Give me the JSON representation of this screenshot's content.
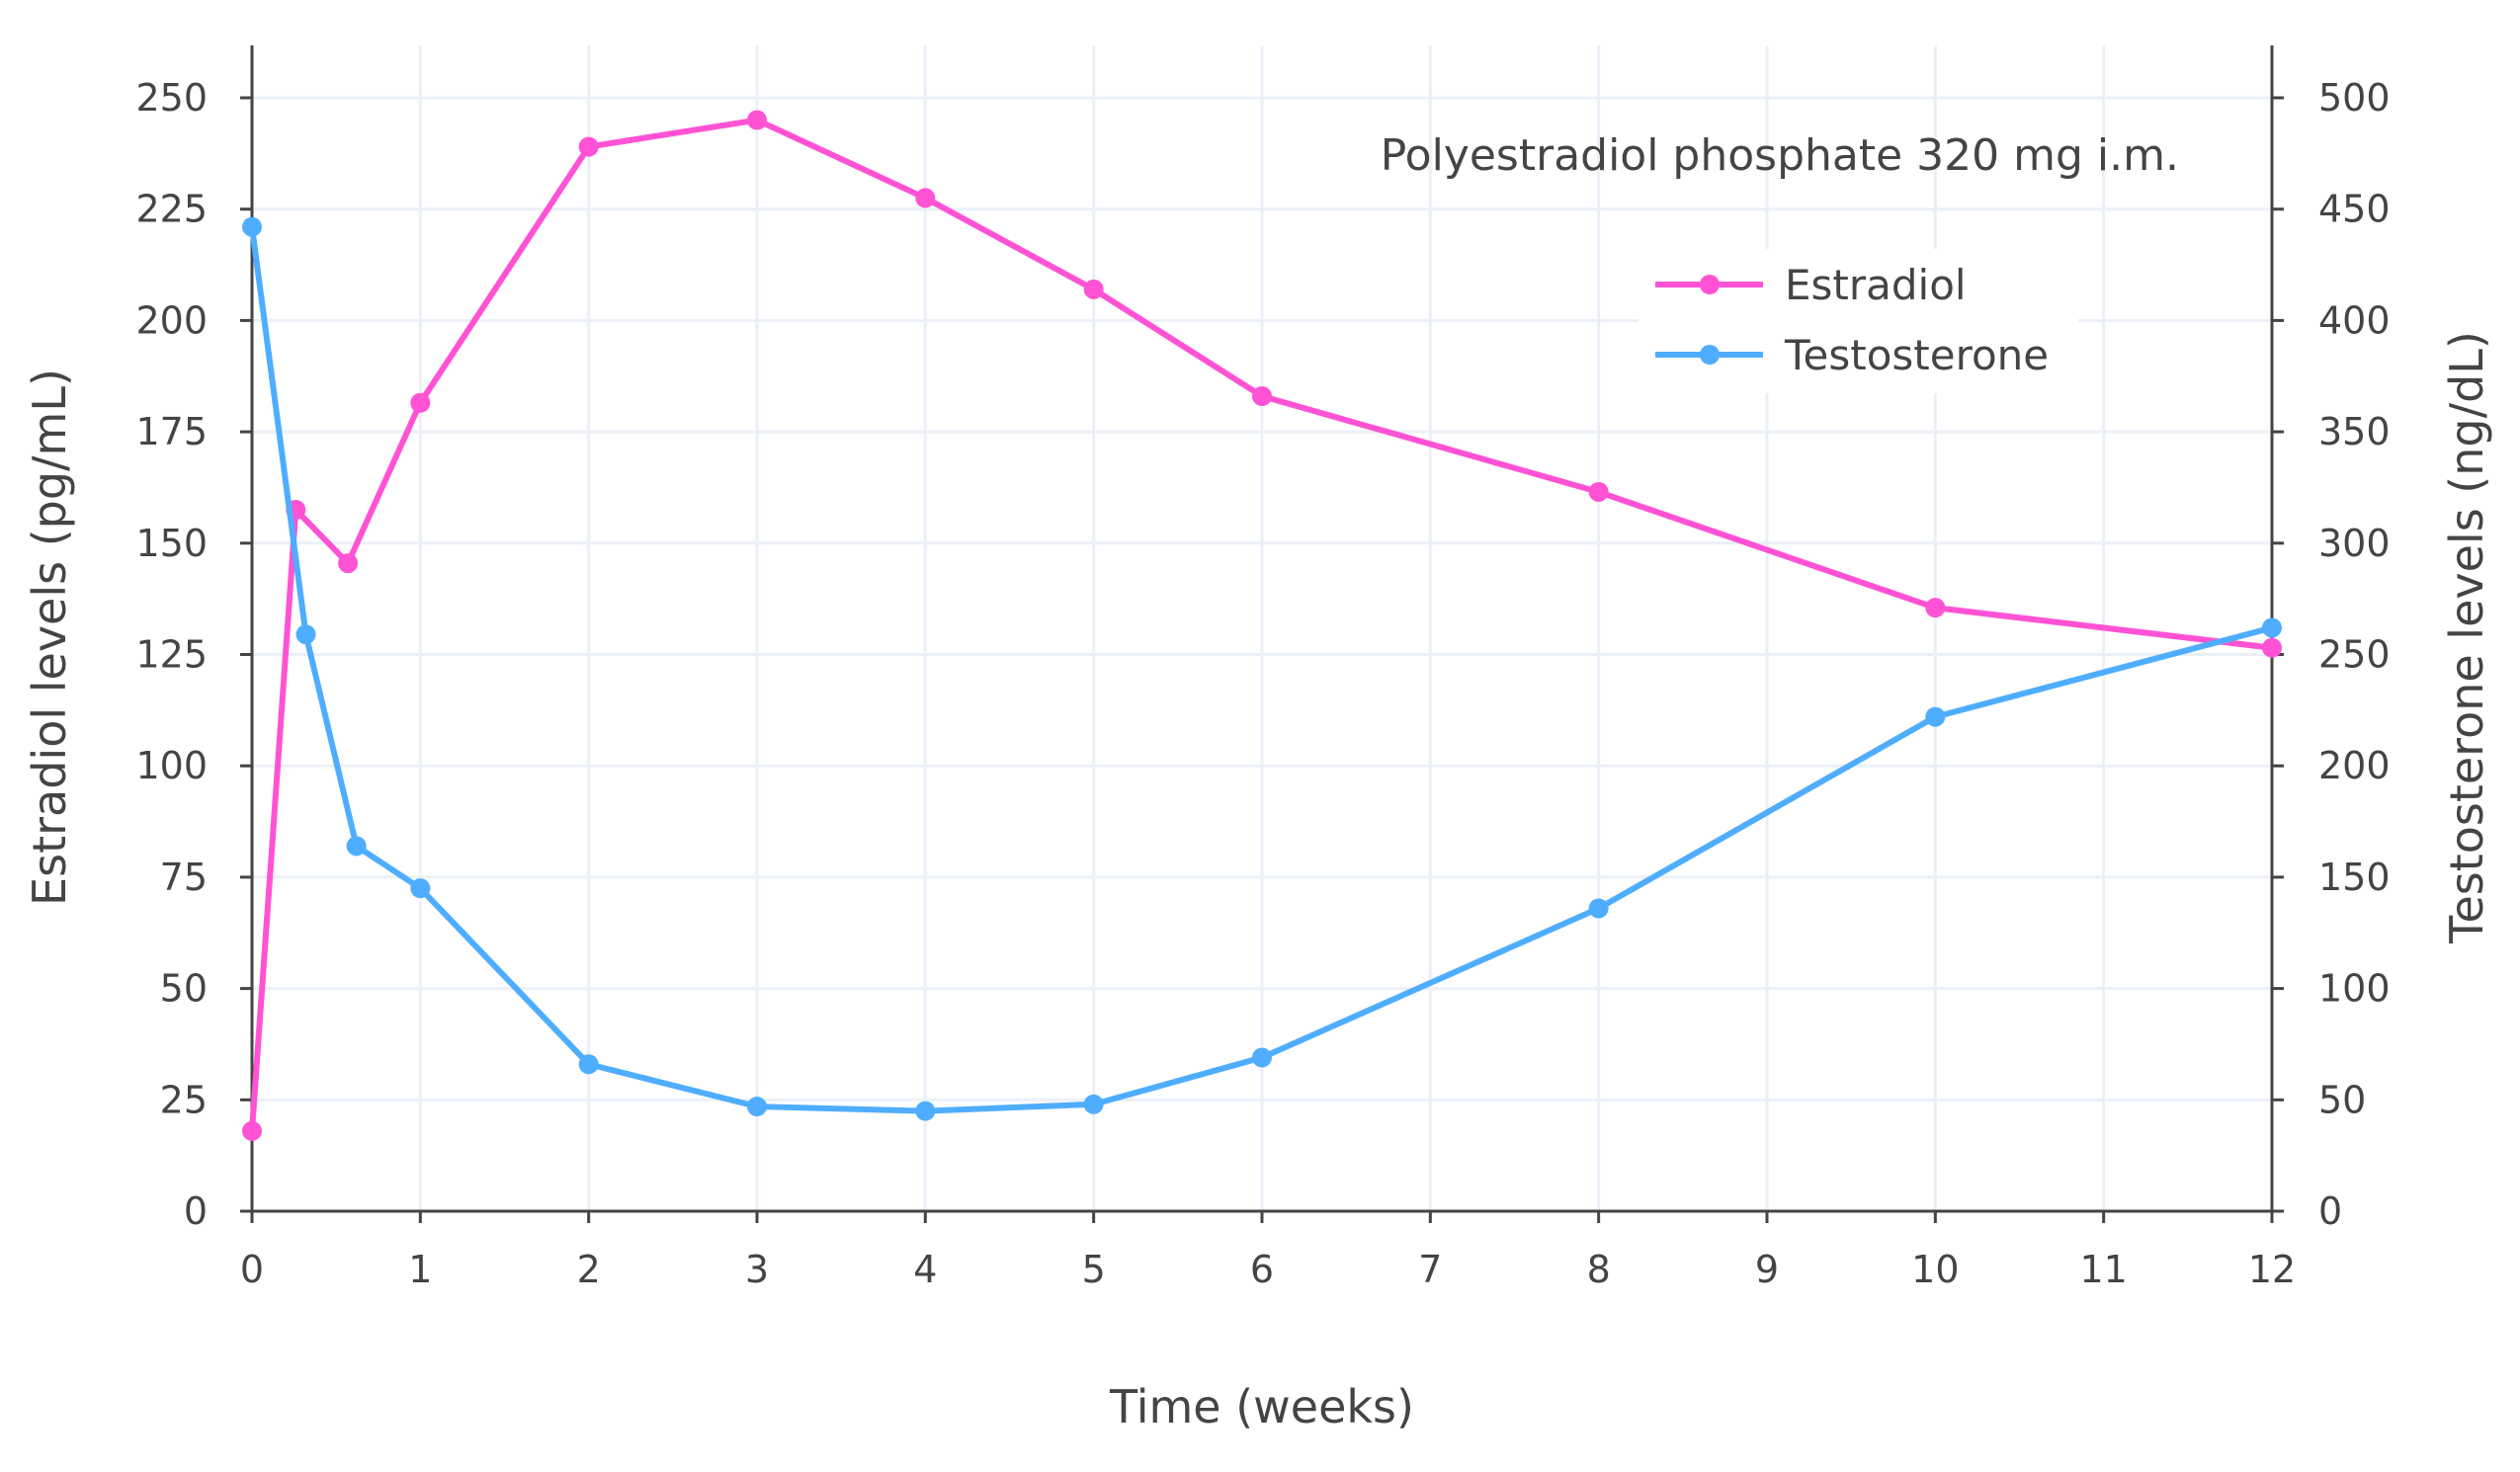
{
  "chart_data": {
    "type": "line",
    "title": "",
    "annotation": "Polyestradiol phosphate 320 mg i.m.",
    "xlabel": "Time (weeks)",
    "ylabel": "Estradiol levels (pg/mL)",
    "y2label": "Testosterone levels (ng/dL)",
    "xlim": [
      0,
      12
    ],
    "ylim": [
      0,
      250
    ],
    "y2lim": [
      0,
      500
    ],
    "x_ticks": [
      "0",
      "1",
      "2",
      "3",
      "4",
      "5",
      "6",
      "7",
      "8",
      "9",
      "10",
      "11",
      "12"
    ],
    "y_ticks": [
      "0",
      "25",
      "50",
      "75",
      "100",
      "125",
      "150",
      "175",
      "200",
      "225",
      "250"
    ],
    "y2_ticks": [
      "0",
      "50",
      "100",
      "150",
      "200",
      "250",
      "300",
      "350",
      "400",
      "450",
      "500"
    ],
    "grid": true,
    "legend": "top-right",
    "series": [
      {
        "name": "Estradiol",
        "axis": "left",
        "color": "#ff52d4",
        "x": [
          0,
          0.26,
          0.57,
          1,
          2,
          3,
          4,
          5,
          6,
          8,
          10,
          12
        ],
        "y": [
          18,
          157.5,
          145.5,
          181.5,
          239,
          245,
          227.5,
          207,
          183,
          161.5,
          135.5,
          126.5
        ]
      },
      {
        "name": "Testosterone",
        "axis": "right",
        "color": "#4fadff",
        "x": [
          0,
          0.32,
          0.62,
          1,
          2,
          3,
          4,
          5,
          6,
          8,
          10,
          12
        ],
        "y": [
          442,
          259,
          164,
          145,
          66,
          47,
          45,
          48,
          69,
          136,
          222,
          262
        ]
      }
    ]
  }
}
